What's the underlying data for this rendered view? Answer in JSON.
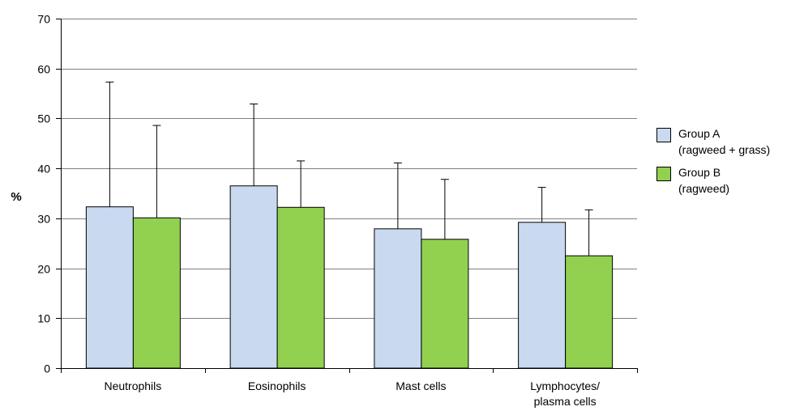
{
  "chart_data": {
    "type": "bar",
    "ylabel": "%",
    "ylim": [
      0,
      70
    ],
    "yticks": [
      "0",
      "10",
      "20",
      "30",
      "40",
      "50",
      "60",
      "70"
    ],
    "grid": true,
    "legend_position": "right",
    "categories": [
      [
        "Neutrophils"
      ],
      [
        "Eosinophils"
      ],
      [
        "Mast cells"
      ],
      [
        "Lymphocytes/",
        "plasma cells"
      ]
    ],
    "series": [
      {
        "name": "Group A (ragweed + grass)",
        "name_lines": [
          "Group A",
          "(ragweed + grass)"
        ],
        "color": "#c9d9f0",
        "values": [
          32.3,
          36.5,
          27.9,
          29.2
        ],
        "error_upper": [
          57.3,
          52.9,
          41.1,
          36.2
        ]
      },
      {
        "name": "Group B (ragweed)",
        "name_lines": [
          "Group B",
          "(ragweed)"
        ],
        "color": "#92d050",
        "values": [
          30.1,
          32.2,
          25.8,
          22.5
        ],
        "error_upper": [
          48.6,
          41.5,
          37.8,
          31.7
        ]
      }
    ]
  }
}
